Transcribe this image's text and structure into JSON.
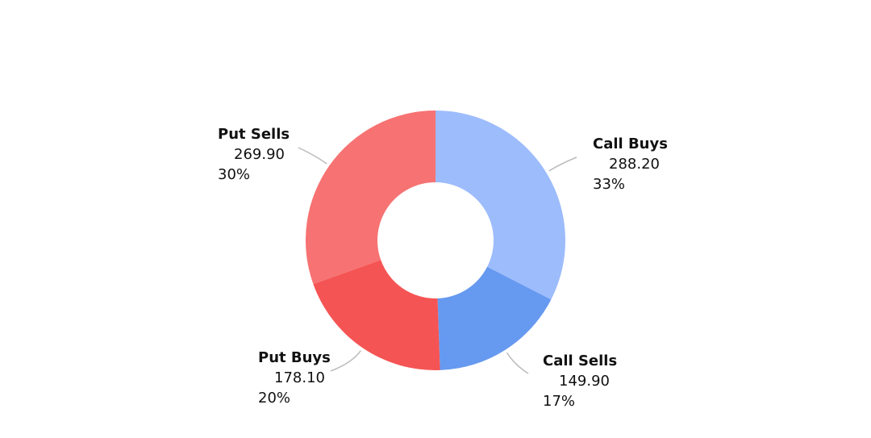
{
  "chart_data": {
    "type": "donut",
    "categories": [
      "Call Buys",
      "Call Sells",
      "Put Buys",
      "Put Sells"
    ],
    "values": [
      288.2,
      149.9,
      178.1,
      269.9
    ],
    "value_labels": [
      "288.20",
      "149.90",
      "178.10",
      "269.90"
    ],
    "percent_labels": [
      "33%",
      "17%",
      "20%",
      "30%"
    ],
    "colors": [
      "#9dbcfc",
      "#6699f0",
      "#f55454",
      "#f77272"
    ]
  }
}
